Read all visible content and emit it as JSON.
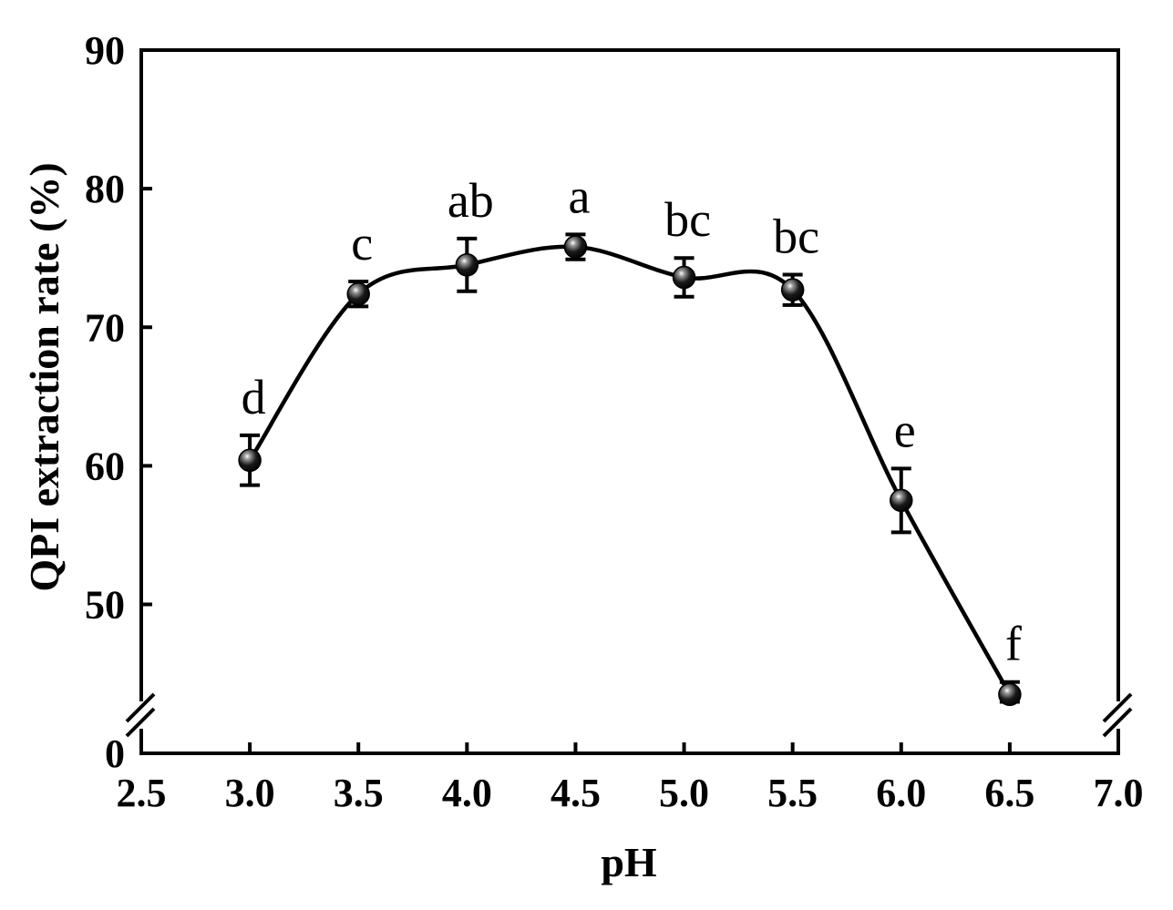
{
  "chart_data": {
    "type": "scatter",
    "title": "",
    "xlabel": "pH",
    "ylabel": "QPI extraction rate (%)",
    "xlim": [
      2.5,
      7.0
    ],
    "ylim": [
      0,
      90
    ],
    "y_axis_break": true,
    "x_ticks": [
      "2.5",
      "3.0",
      "3.5",
      "4.0",
      "4.5",
      "5.0",
      "5.5",
      "6.0",
      "6.5",
      "7.0"
    ],
    "y_ticks": [
      "0",
      "50",
      "60",
      "70",
      "80",
      "90"
    ],
    "series": [
      {
        "x": [
          3.0,
          3.5,
          4.0,
          4.5,
          5.0,
          5.5,
          6.0,
          6.5
        ],
        "y": [
          60.4,
          72.4,
          74.5,
          75.8,
          73.6,
          72.7,
          57.5,
          43.5
        ],
        "error": [
          1.8,
          0.9,
          1.9,
          0.9,
          1.4,
          1.1,
          2.3,
          0.9
        ],
        "letters": [
          "d",
          "c",
          "ab",
          "a",
          "bc",
          "bc",
          "e",
          "f"
        ],
        "fit_line": true
      }
    ],
    "grid": false,
    "legend": "none"
  }
}
